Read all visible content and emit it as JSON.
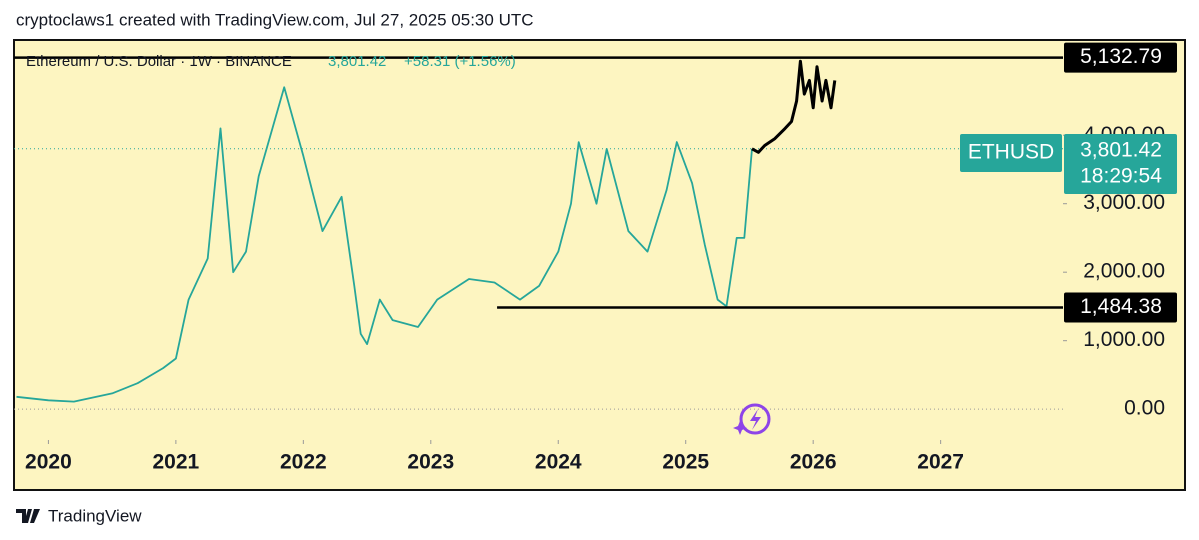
{
  "header": {
    "text": "cryptoclaws1 created with TradingView.com, Jul 27, 2025 05:30 UTC"
  },
  "footer": {
    "brand": "TradingView"
  },
  "chart_data": {
    "type": "line",
    "title": "Ethereum / U.S. Dollar · 1W · BINANCE",
    "last": {
      "value": 3801.42,
      "label": "3,801.42"
    },
    "change": "+58.31 (+1.56%)",
    "symbol": "ETHUSD",
    "countdown": "18:29:54",
    "xlim": [
      2019.73,
      2027.96
    ],
    "xticks": [
      2020,
      2021,
      2022,
      2023,
      2024,
      2025,
      2026,
      2027
    ],
    "ylim": [
      -450,
      5390
    ],
    "yticks": [
      {
        "value": 0,
        "label": "0.00"
      },
      {
        "value": 1000,
        "label": "1,000.00"
      },
      {
        "value": 2000,
        "label": "2,000.00"
      },
      {
        "value": 3000,
        "label": "3,000.00"
      },
      {
        "value": 4000,
        "label": "4,000.00"
      }
    ],
    "levels": [
      {
        "value": 5132.79,
        "label": "5,132.79",
        "from": 2019.73
      },
      {
        "value": 1484.38,
        "label": "1,484.38",
        "from": 2023.52
      }
    ],
    "series": [
      {
        "color": "#26a69a",
        "x": [
          2019.75,
          2020.0,
          2020.2,
          2020.5,
          2020.7,
          2020.9,
          2021.0,
          2021.1,
          2021.25,
          2021.35,
          2021.45,
          2021.55,
          2021.65,
          2021.85,
          2022.0,
          2022.15,
          2022.3,
          2022.4,
          2022.45,
          2022.5,
          2022.6,
          2022.7,
          2022.9,
          2023.05,
          2023.3,
          2023.5,
          2023.7,
          2023.85,
          2024.0,
          2024.1,
          2024.16,
          2024.3,
          2024.38,
          2024.55,
          2024.7,
          2024.85,
          2024.93,
          2025.05,
          2025.15,
          2025.25,
          2025.32,
          2025.4,
          2025.46,
          2025.52
        ],
        "values": [
          180,
          130,
          110,
          230,
          380,
          600,
          740,
          1600,
          2200,
          4100,
          2000,
          2300,
          3400,
          4700,
          3700,
          2600,
          3100,
          1800,
          1100,
          950,
          1600,
          1300,
          1200,
          1600,
          1900,
          1850,
          1600,
          1800,
          2300,
          3000,
          3900,
          3000,
          3800,
          2600,
          2300,
          3200,
          3900,
          3300,
          2400,
          1600,
          1500,
          2500,
          2500,
          3801.42
        ]
      },
      {
        "color": "#000000",
        "x": [
          2025.52,
          2025.57,
          2025.62,
          2025.7,
          2025.78,
          2025.83,
          2025.87,
          2025.9,
          2025.93,
          2025.97,
          2026.0,
          2026.03,
          2026.07,
          2026.1,
          2026.14,
          2026.17
        ],
        "values": [
          3801.42,
          3750,
          3850,
          3950,
          4100,
          4200,
          4500,
          5080,
          4600,
          4800,
          4400,
          5000,
          4500,
          4800,
          4400,
          4800
        ]
      }
    ]
  }
}
